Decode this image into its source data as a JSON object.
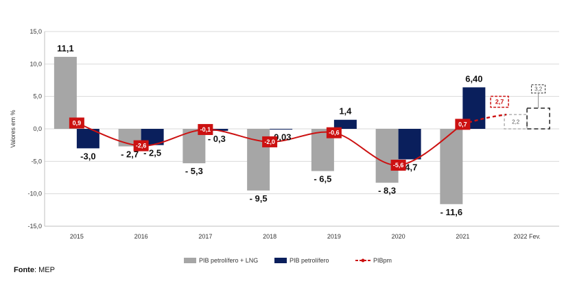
{
  "chart_data": {
    "type": "bar",
    "categories": [
      "2015",
      "2016",
      "2017",
      "2018",
      "2019",
      "2020",
      "2021",
      "2022 Fev."
    ],
    "ylabel": "Valores em %",
    "ylim": [
      -15,
      15
    ],
    "yticks": [
      "15,0",
      "10,0",
      "5,0",
      "0,0",
      "-5,0",
      "-10,0",
      "-15,0"
    ],
    "series": [
      {
        "name": "PIB petrolífero + LNG",
        "color": "#a6a6a6",
        "values": [
          11.1,
          -2.7,
          -5.3,
          -9.5,
          -6.5,
          -8.3,
          -11.6,
          null
        ],
        "labels": [
          "11,1",
          "- 2,7",
          "- 5,3",
          "- 9,5",
          "- 6,5",
          "- 8,3",
          "- 11,6",
          ""
        ]
      },
      {
        "name": "PIB petrolífero",
        "color": "#0a1f5c",
        "values": [
          -3.0,
          -2.5,
          -0.3,
          -0.03,
          1.4,
          -4.7,
          6.4,
          null
        ],
        "labels": [
          "-3,0",
          "- 2,5",
          "- 0,3",
          "-0,03",
          "1,4",
          "-4,7",
          "6,40",
          ""
        ]
      },
      {
        "name": "PIBpm",
        "type": "line",
        "color": "#cc1111",
        "values": [
          0.9,
          -2.6,
          -0.1,
          -2.0,
          -0.6,
          -5.6,
          0.7,
          null
        ],
        "labels": [
          "0,9",
          "-2,6",
          "-0,1",
          "-2,0",
          "-0,6",
          "-5,6",
          "0,7",
          ""
        ]
      }
    ],
    "projections_2022": {
      "pib_petrolifero_lng": {
        "value": 2.2,
        "label": "2,2"
      },
      "pib_petrolifero": {
        "value": 3.2,
        "label": "3,2"
      },
      "pibpm": {
        "value": 2.7,
        "label": "2,7"
      }
    },
    "legend_position": "bottom"
  },
  "source": {
    "label": "Fonte",
    "text": ": MEP"
  }
}
